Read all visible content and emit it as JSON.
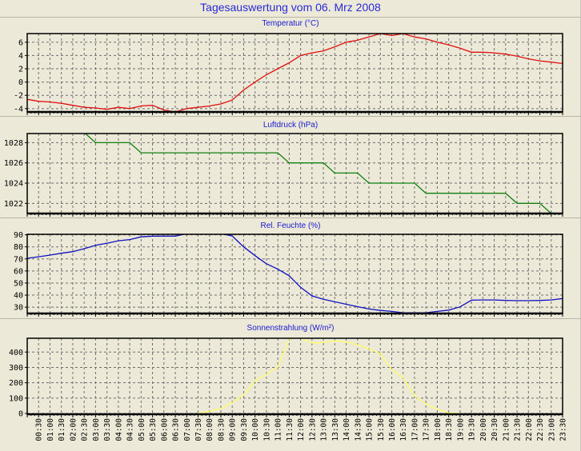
{
  "title": "Tagesauswertung vom 06. Mrz 2008",
  "x_tick_labels": [
    "00:30",
    "01:00",
    "01:30",
    "02:00",
    "02:30",
    "03:00",
    "03:30",
    "04:00",
    "04:30",
    "05:00",
    "05:30",
    "06:00",
    "06:30",
    "07:00",
    "07:30",
    "08:00",
    "08:30",
    "09:00",
    "09:30",
    "10:00",
    "10:30",
    "11:00",
    "11:30",
    "12:00",
    "12:30",
    "13:00",
    "13:30",
    "14:00",
    "14:30",
    "15:00",
    "15:30",
    "16:00",
    "16:30",
    "17:00",
    "17:30",
    "18:00",
    "18:30",
    "19:00",
    "19:30",
    "20:00",
    "20:30",
    "21:00",
    "21:30",
    "22:00",
    "22:30",
    "23:00",
    "23:30"
  ],
  "chart_data": [
    {
      "type": "line",
      "title": "Temperatur (°C)",
      "x": [
        "00:00",
        "00:30",
        "01:00",
        "01:30",
        "02:00",
        "02:30",
        "03:00",
        "03:30",
        "04:00",
        "04:30",
        "05:00",
        "05:30",
        "06:00",
        "06:30",
        "07:00",
        "07:30",
        "08:00",
        "08:30",
        "09:00",
        "09:30",
        "10:00",
        "10:30",
        "11:00",
        "11:30",
        "12:00",
        "12:30",
        "13:00",
        "13:30",
        "14:00",
        "14:30",
        "15:00",
        "15:30",
        "16:00",
        "16:30",
        "17:00",
        "17:30",
        "18:00",
        "18:30",
        "19:00",
        "19:30",
        "20:00",
        "20:30",
        "21:00",
        "21:30",
        "22:00",
        "22:30",
        "23:00",
        "23:30"
      ],
      "values": [
        -2.6,
        -2.9,
        -3.0,
        -3.2,
        -3.5,
        -3.8,
        -3.9,
        -4.1,
        -3.8,
        -4.0,
        -3.6,
        -3.5,
        -4.2,
        -4.5,
        -4.0,
        -3.8,
        -3.6,
        -3.3,
        -2.7,
        -1.2,
        0.0,
        1.1,
        2.0,
        2.9,
        4.0,
        4.4,
        4.7,
        5.3,
        6.0,
        6.3,
        6.8,
        7.3,
        7.0,
        7.3,
        6.8,
        6.5,
        6.0,
        5.6,
        5.1,
        4.5,
        4.5,
        4.4,
        4.2,
        3.9,
        3.5,
        3.2,
        3.0,
        2.8
      ],
      "color": "#e01010",
      "ylim": [
        -4.5,
        7.3
      ],
      "yticks": [
        -4,
        -2,
        0,
        2,
        4,
        6
      ],
      "grid": true
    },
    {
      "type": "line",
      "title": "Luftdruck (hPa)",
      "x": [
        "00:00",
        "00:30",
        "01:00",
        "01:30",
        "02:00",
        "02:30",
        "03:00",
        "03:30",
        "04:00",
        "04:30",
        "05:00",
        "05:30",
        "06:00",
        "06:30",
        "07:00",
        "07:30",
        "08:00",
        "08:30",
        "09:00",
        "09:30",
        "10:00",
        "10:30",
        "11:00",
        "11:30",
        "12:00",
        "12:30",
        "13:00",
        "13:30",
        "14:00",
        "14:30",
        "15:00",
        "15:30",
        "16:00",
        "16:30",
        "17:00",
        "17:30",
        "18:00",
        "18:30",
        "19:00",
        "19:30",
        "20:00",
        "20:30",
        "21:00",
        "21:30",
        "22:00",
        "22:30",
        "23:00",
        "23:30"
      ],
      "values": [
        null,
        null,
        null,
        null,
        null,
        1029,
        1028,
        1028,
        1028,
        1028,
        1027,
        1027,
        1027,
        1027,
        1027,
        1027,
        1027,
        1027,
        1027,
        1027,
        1027,
        1027,
        1027,
        1026,
        1026,
        1026,
        1026,
        1025,
        1025,
        1025,
        1024,
        1024,
        1024,
        1024,
        1024,
        1023,
        1023,
        1023,
        1023,
        1023,
        1023,
        1023,
        1023,
        1022,
        1022,
        1022,
        1021,
        1021
      ],
      "color": "#108010",
      "ylim": [
        1021,
        1028.9
      ],
      "yticks": [
        1022,
        1024,
        1026,
        1028
      ],
      "grid": true
    },
    {
      "type": "line",
      "title": "Rel. Feuchte (%)",
      "x": [
        "00:00",
        "00:30",
        "01:00",
        "01:30",
        "02:00",
        "02:30",
        "03:00",
        "03:30",
        "04:00",
        "04:30",
        "05:00",
        "05:30",
        "06:00",
        "06:30",
        "07:00",
        "07:30",
        "08:00",
        "08:30",
        "09:00",
        "09:30",
        "10:00",
        "10:30",
        "11:00",
        "11:30",
        "12:00",
        "12:30",
        "13:00",
        "13:30",
        "14:00",
        "14:30",
        "15:00",
        "15:30",
        "16:00",
        "16:30",
        "17:00",
        "17:30",
        "18:00",
        "18:30",
        "19:00",
        "19:30",
        "20:00",
        "20:30",
        "21:00",
        "21:30",
        "22:00",
        "22:30",
        "23:00",
        "23:30"
      ],
      "values": [
        70.5,
        71.8,
        73.2,
        74.7,
        76,
        78.5,
        81.3,
        83,
        85,
        86,
        88.3,
        88.9,
        88.9,
        88.9,
        91,
        92,
        92,
        91,
        89,
        80,
        72.7,
        66,
        61.5,
        56,
        46.5,
        39.4,
        36.5,
        34.5,
        32.4,
        30.4,
        28.5,
        27.3,
        26.5,
        25.4,
        25.3,
        25.3,
        26.5,
        27.6,
        30.3,
        35.8,
        36,
        36,
        35.6,
        35.4,
        35.4,
        35.6,
        36,
        37.2
      ],
      "color": "#1010c0",
      "ylim": [
        24.8,
        90.4
      ],
      "yticks": [
        30,
        40,
        50,
        60,
        70,
        80,
        90
      ],
      "grid": true
    },
    {
      "type": "line",
      "title": "Sonnenstrahlung (W/m²)",
      "x": [
        "00:00",
        "00:30",
        "01:00",
        "01:30",
        "02:00",
        "02:30",
        "03:00",
        "03:30",
        "04:00",
        "04:30",
        "05:00",
        "05:30",
        "06:00",
        "06:30",
        "07:00",
        "07:30",
        "08:00",
        "08:30",
        "09:00",
        "09:30",
        "10:00",
        "10:30",
        "11:00",
        "11:30",
        "12:00",
        "12:30",
        "13:00",
        "13:30",
        "14:00",
        "14:30",
        "15:00",
        "15:30",
        "16:00",
        "16:30",
        "17:00",
        "17:30",
        "18:00",
        "18:30",
        "19:00",
        "19:30",
        "20:00",
        "20:30",
        "21:00",
        "21:30",
        "22:00",
        "22:30",
        "23:00",
        "23:30"
      ],
      "values": [
        null,
        null,
        null,
        null,
        null,
        null,
        null,
        null,
        null,
        null,
        null,
        null,
        null,
        null,
        null,
        0,
        14,
        32,
        70,
        120,
        212,
        255,
        300,
        490,
        492,
        460,
        462,
        474,
        466,
        447,
        420,
        390,
        285,
        235,
        115,
        63,
        28,
        3,
        0,
        null,
        null,
        null,
        null,
        null,
        null,
        null,
        null,
        null
      ],
      "color": "#ffff66",
      "ylim": [
        -5,
        490
      ],
      "yticks": [
        0,
        100,
        200,
        300,
        400
      ],
      "grid": true
    }
  ]
}
